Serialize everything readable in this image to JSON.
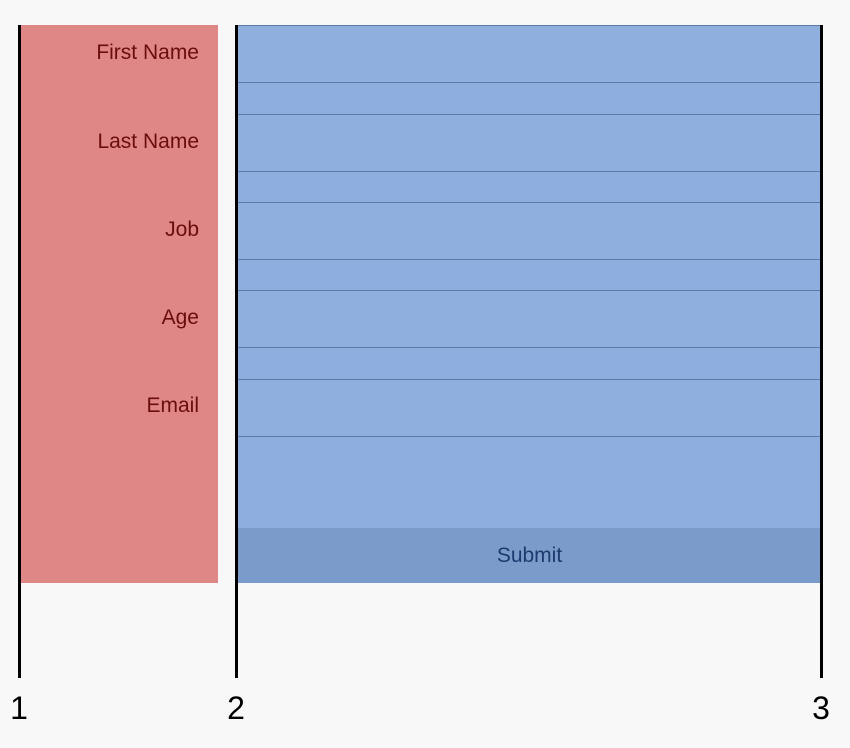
{
  "form": {
    "labels": [
      "First Name",
      "Last Name",
      "Job",
      "Age",
      "Email"
    ],
    "submit_label": "Submit"
  },
  "grid": {
    "line_numbers": [
      "1",
      "2",
      "3"
    ]
  },
  "colors": {
    "label_column_bg": "#df8686",
    "label_text": "#6b0d0d",
    "field_column_bg": "#8eaedf",
    "submit_bg": "#7b9ccb",
    "submit_text": "#1c3a70",
    "grid_line": "#000000"
  }
}
